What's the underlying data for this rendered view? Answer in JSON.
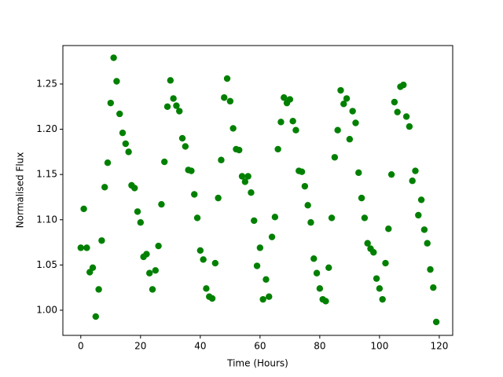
{
  "chart_data": {
    "type": "scatter",
    "xlabel": "Time (Hours)",
    "ylabel": "Normalised Flux",
    "color": "#008000",
    "x": [
      0,
      1,
      2,
      3,
      4,
      5,
      6,
      7,
      8,
      9,
      10,
      11,
      12,
      13,
      14,
      15,
      16,
      17,
      18,
      19,
      20,
      21,
      22,
      23,
      24,
      25,
      26,
      27,
      28,
      29,
      30,
      31,
      32,
      33,
      34,
      35,
      36,
      37,
      38,
      39,
      40,
      41,
      42,
      43,
      44,
      45,
      46,
      47,
      48,
      49,
      50,
      51,
      52,
      53,
      54,
      55,
      56,
      57,
      58,
      59,
      60,
      61,
      62,
      63,
      64,
      65,
      66,
      67,
      68,
      69,
      70,
      71,
      72,
      73,
      74,
      75,
      76,
      77,
      78,
      79,
      80,
      81,
      82,
      83,
      84,
      85,
      86,
      87,
      88,
      89,
      90,
      91,
      92,
      93,
      94,
      95,
      96,
      97,
      98,
      99,
      100,
      101,
      102,
      103,
      104,
      105,
      106,
      107,
      108,
      109,
      110,
      111,
      112,
      113,
      114,
      115,
      116,
      117,
      118,
      119
    ],
    "values": [
      1.069,
      1.112,
      1.069,
      1.042,
      1.047,
      0.993,
      1.023,
      1.077,
      1.136,
      1.163,
      1.229,
      1.279,
      1.253,
      1.217,
      1.196,
      1.184,
      1.175,
      1.138,
      1.135,
      1.109,
      1.097,
      1.059,
      1.062,
      1.041,
      1.023,
      1.044,
      1.071,
      1.117,
      1.164,
      1.225,
      1.254,
      1.234,
      1.226,
      1.22,
      1.19,
      1.181,
      1.155,
      1.154,
      1.128,
      1.102,
      1.066,
      1.056,
      1.024,
      1.015,
      1.013,
      1.052,
      1.124,
      1.166,
      1.235,
      1.256,
      1.231,
      1.201,
      1.178,
      1.177,
      1.148,
      1.142,
      1.148,
      1.13,
      1.099,
      1.049,
      1.069,
      1.012,
      1.034,
      1.015,
      1.081,
      1.103,
      1.178,
      1.208,
      1.235,
      1.229,
      1.233,
      1.209,
      1.199,
      1.154,
      1.153,
      1.137,
      1.116,
      1.097,
      1.057,
      1.041,
      1.024,
      1.012,
      1.01,
      1.047,
      1.102,
      1.169,
      1.199,
      1.243,
      1.228,
      1.234,
      1.189,
      1.22,
      1.207,
      1.152,
      1.124,
      1.102,
      1.074,
      1.068,
      1.064,
      1.035,
      1.024,
      1.012,
      1.052,
      1.09,
      1.15,
      1.23,
      1.219,
      1.247,
      1.249,
      1.214,
      1.203,
      1.143,
      1.154,
      1.105,
      1.122,
      1.089,
      1.074,
      1.045,
      1.025,
      0.987
    ],
    "xlim": [
      -6,
      124.5
    ],
    "ylim": [
      0.9722,
      1.2925
    ],
    "xticks": [
      0,
      20,
      40,
      60,
      80,
      100,
      120
    ],
    "yticks": [
      {
        "value": 1.0,
        "label": "1.00"
      },
      1.05,
      {
        "value": 1.1,
        "label": "1.10"
      },
      1.15,
      {
        "value": 1.2,
        "label": "1.20"
      },
      1.25
    ]
  }
}
